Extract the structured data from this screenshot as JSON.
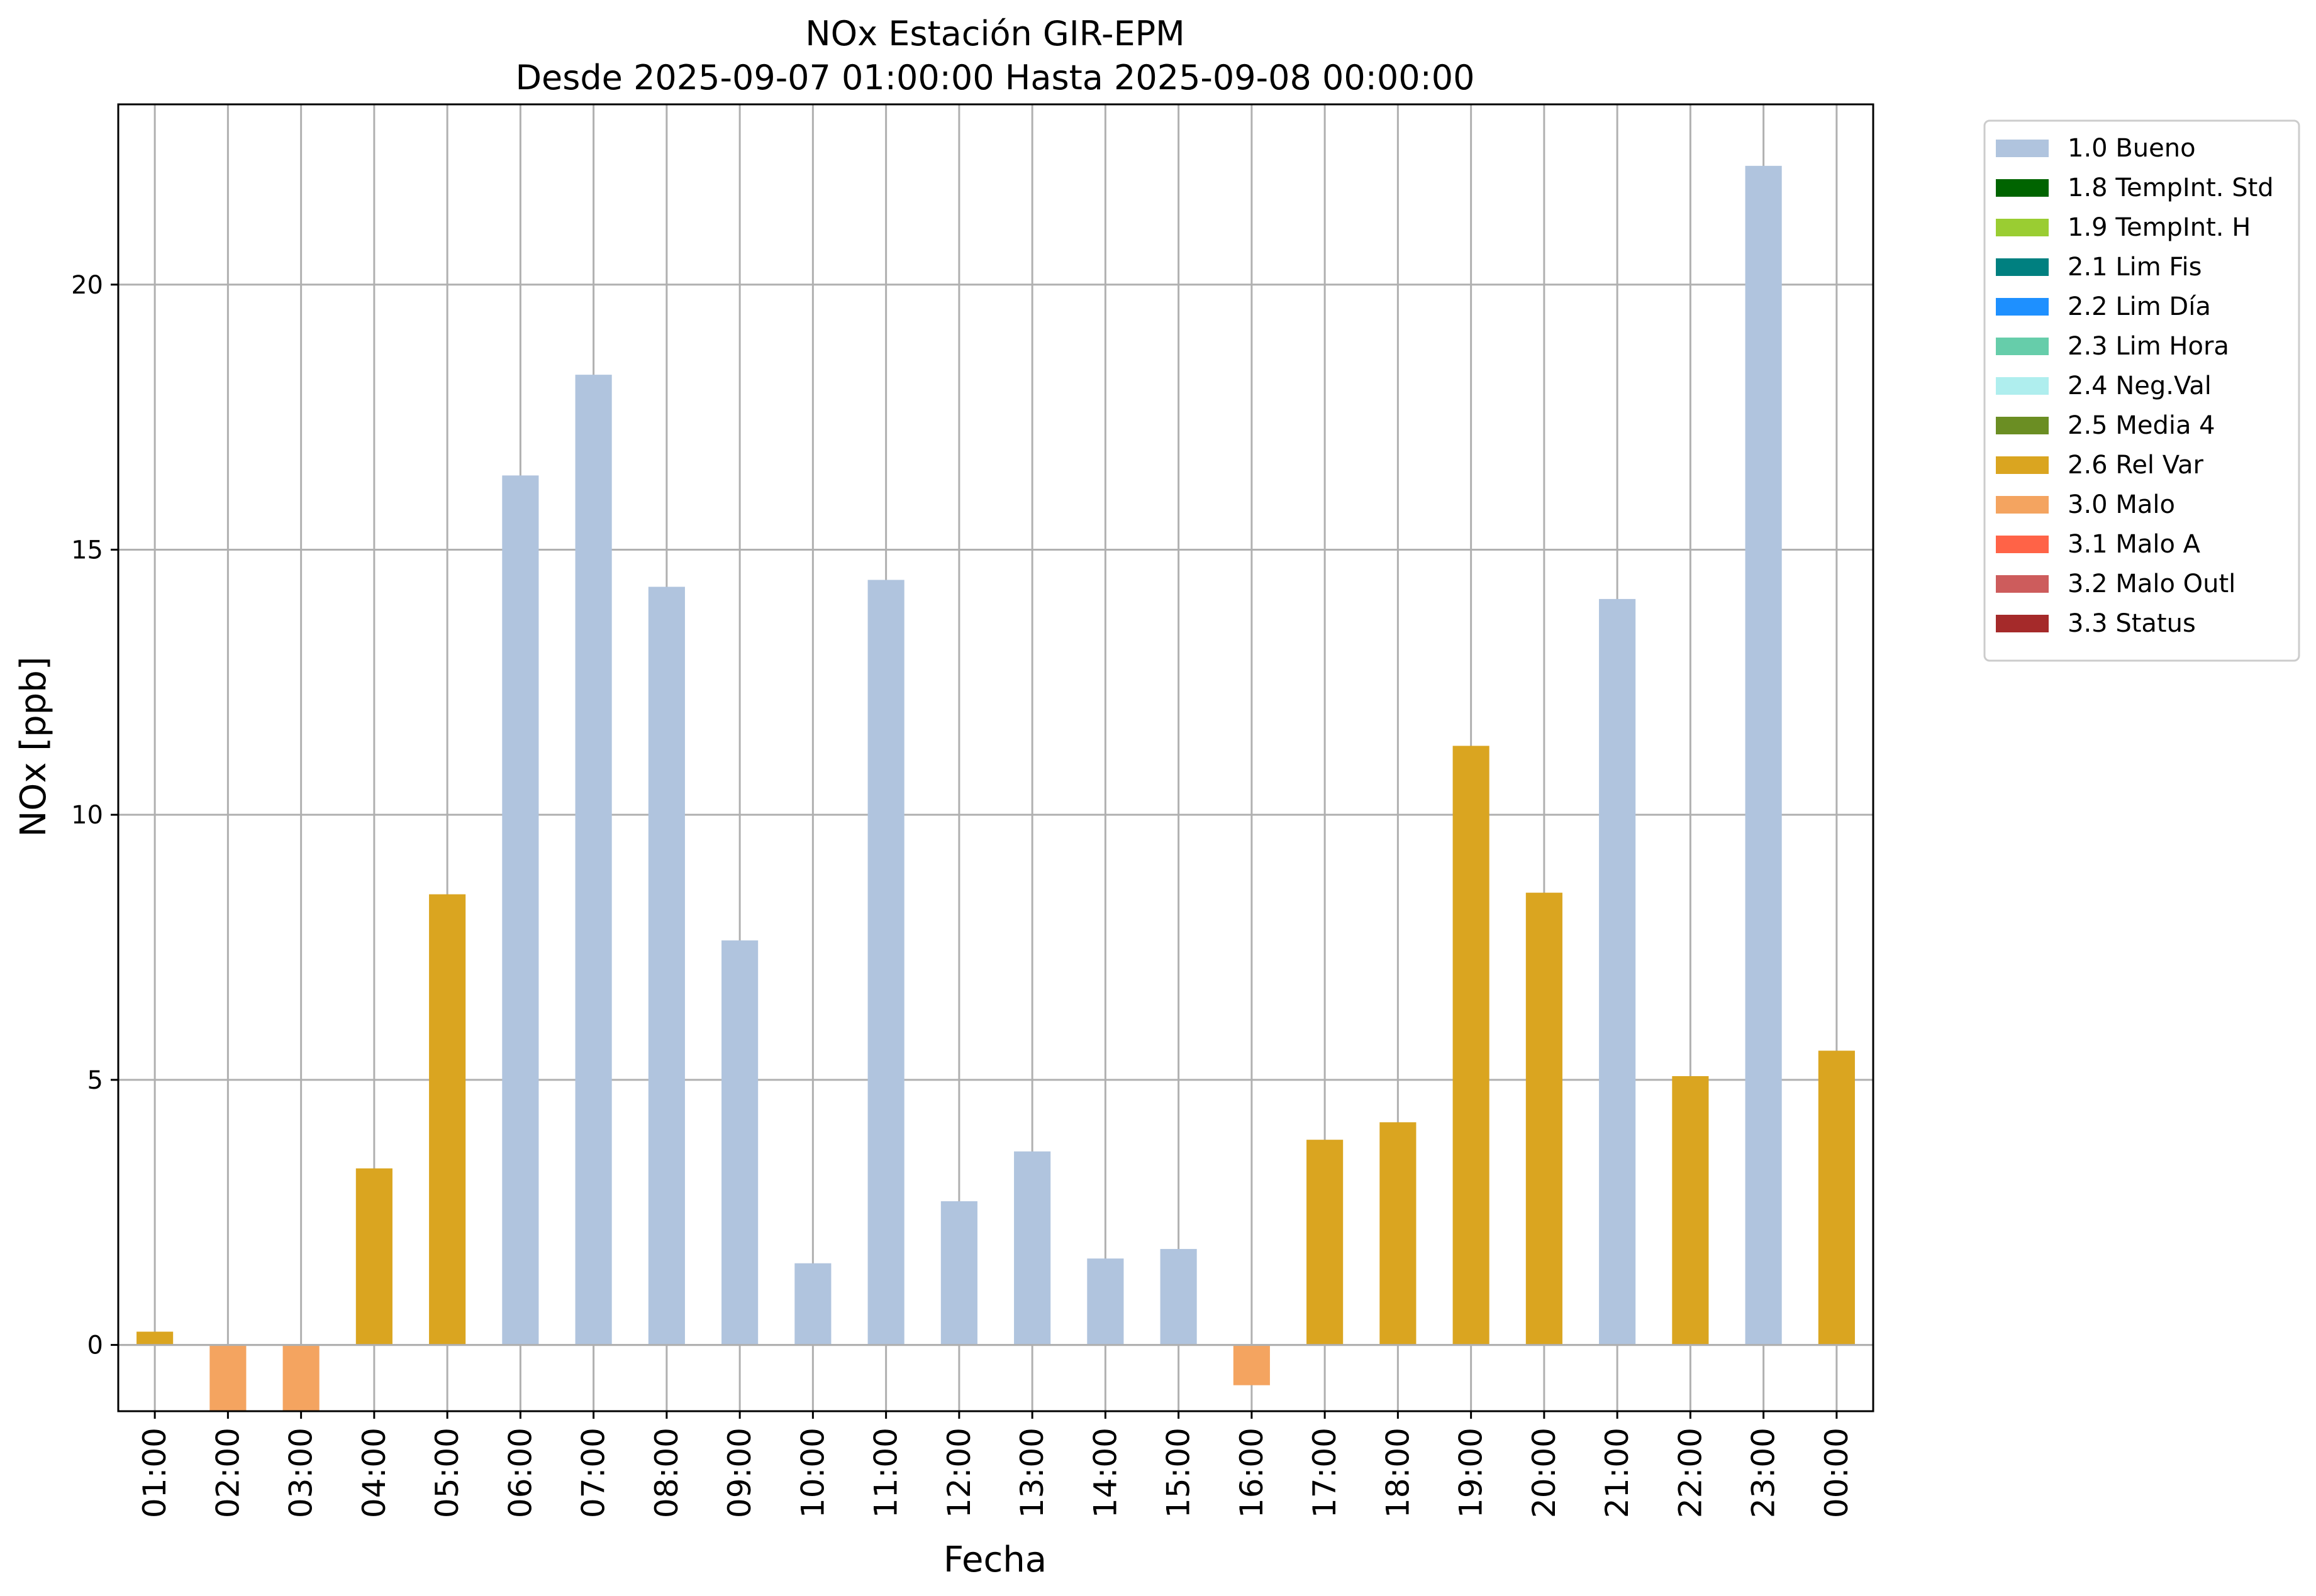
{
  "chart_data": {
    "type": "bar",
    "title": "NOx Estación GIR-EPM",
    "subtitle": "Desde 2025-09-07 01:00:00 Hasta 2025-09-08 00:00:00",
    "xlabel": "Fecha",
    "ylabel": "NOx [ppb]",
    "ylim": [
      -1.25,
      23.4
    ],
    "yticks": [
      0,
      5,
      10,
      15,
      20
    ],
    "grid": true,
    "legend_position": "outside-top-right",
    "categories": [
      "01:00",
      "02:00",
      "03:00",
      "04:00",
      "05:00",
      "06:00",
      "07:00",
      "08:00",
      "09:00",
      "10:00",
      "11:00",
      "12:00",
      "13:00",
      "14:00",
      "15:00",
      "16:00",
      "17:00",
      "18:00",
      "19:00",
      "20:00",
      "21:00",
      "22:00",
      "23:00",
      "00:00"
    ],
    "values": [
      0.25,
      -1.25,
      -1.25,
      3.33,
      8.5,
      16.4,
      18.3,
      14.3,
      7.63,
      1.54,
      14.43,
      2.71,
      3.65,
      1.63,
      1.81,
      -0.76,
      3.87,
      4.2,
      11.3,
      8.53,
      14.07,
      5.07,
      22.24,
      5.55
    ],
    "flags": [
      "2.6 Rel Var",
      "3.0 Malo",
      "3.0 Malo",
      "2.6 Rel Var",
      "2.6 Rel Var",
      "1.0 Bueno",
      "1.0 Bueno",
      "1.0 Bueno",
      "1.0 Bueno",
      "1.0 Bueno",
      "1.0 Bueno",
      "1.0 Bueno",
      "1.0 Bueno",
      "1.0 Bueno",
      "1.0 Bueno",
      "3.0 Malo",
      "2.6 Rel Var",
      "2.6 Rel Var",
      "2.6 Rel Var",
      "2.6 Rel Var",
      "1.0 Bueno",
      "2.6 Rel Var",
      "1.0 Bueno",
      "2.6 Rel Var"
    ],
    "legend": [
      {
        "label": "1.0 Bueno",
        "color": "#b0c4de"
      },
      {
        "label": "1.8 TempInt. Std",
        "color": "#006400"
      },
      {
        "label": "1.9 TempInt. H",
        "color": "#9acd32"
      },
      {
        "label": "2.1 Lim Fis",
        "color": "#008080"
      },
      {
        "label": "2.2 Lim Día",
        "color": "#1e90ff"
      },
      {
        "label": "2.3 Lim Hora",
        "color": "#66cdaa"
      },
      {
        "label": "2.4 Neg.Val",
        "color": "#afeeee"
      },
      {
        "label": "2.5 Media 4",
        "color": "#6b8e23"
      },
      {
        "label": "2.6 Rel Var",
        "color": "#daa520"
      },
      {
        "label": "3.0 Malo",
        "color": "#f4a460"
      },
      {
        "label": "3.1 Malo A",
        "color": "#ff6347"
      },
      {
        "label": "3.2 Malo Outl",
        "color": "#cd5c5c"
      },
      {
        "label": "3.3 Status",
        "color": "#a52a2a"
      }
    ]
  }
}
